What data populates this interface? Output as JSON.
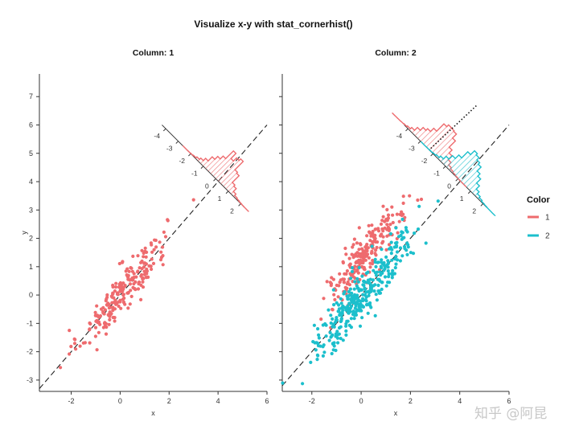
{
  "title": "Visualize x-y with stat_cornerhist()",
  "watermark": "知乎 @阿昆",
  "legend": {
    "title": "Color",
    "items": [
      "1",
      "2"
    ],
    "placement": "right"
  },
  "colors": {
    "1": "#EE6B6E",
    "2": "#1CBFCC",
    "axis": "#333333",
    "refline": "#222222"
  },
  "chart_data": [
    {
      "type": "scatter",
      "facet_label": "Column: 1",
      "xlabel": "x",
      "ylabel": "y",
      "xlim": [
        -3.3,
        6.0
      ],
      "ylim": [
        -3.4,
        7.8
      ],
      "xticks": [
        -2,
        0,
        2,
        4,
        6
      ],
      "yticks": [
        -3,
        -2,
        -1,
        0,
        1,
        2,
        3,
        4,
        5,
        6,
        7
      ],
      "reference_line": {
        "slope": 1,
        "intercept": 0,
        "style": "dashed"
      },
      "series": [
        {
          "name": "1",
          "clusters": [
            {
              "n": 230,
              "x_mean": 0.1,
              "x_sd": 0.9,
              "slope": 1.0,
              "intercept": 0.05,
              "resid_sd": 0.4
            }
          ]
        }
      ],
      "corner_histogram": {
        "axis_ticks": [
          "-4",
          "-3",
          "-2",
          "-1",
          "0",
          "1",
          "2"
        ],
        "series": [
          {
            "name": "1",
            "center": 0.0,
            "spread": 0.4
          }
        ]
      }
    },
    {
      "type": "scatter",
      "facet_label": "Column: 2",
      "xlabel": "x",
      "ylabel": "",
      "xlim": [
        -3.2,
        6.0
      ],
      "ylim": [
        -3.4,
        7.8
      ],
      "xticks": [
        -2,
        0,
        2,
        4,
        6
      ],
      "yticks": [
        -3,
        -2,
        -1,
        0,
        1,
        2,
        3,
        4,
        5,
        6,
        7
      ],
      "reference_line": {
        "slope": 1,
        "intercept": 0,
        "style": "dashed"
      },
      "series": [
        {
          "name": "1",
          "clusters": [
            {
              "n": 230,
              "x_mean": 0.2,
              "x_sd": 0.8,
              "slope": 1.0,
              "intercept": 1.3,
              "resid_sd": 0.45
            }
          ]
        },
        {
          "name": "2",
          "clusters": [
            {
              "n": 330,
              "x_mean": 0.1,
              "x_sd": 1.0,
              "slope": 1.0,
              "intercept": 0.0,
              "resid_sd": 0.45
            }
          ]
        }
      ],
      "corner_histogram": {
        "axis_ticks": [
          "-4",
          "-3",
          "-2",
          "-1",
          "0",
          "1",
          "2"
        ],
        "series": [
          {
            "name": "1",
            "center": -2.3,
            "spread": 0.45
          },
          {
            "name": "2",
            "center": 0.0,
            "spread": 0.45
          }
        ]
      }
    }
  ]
}
